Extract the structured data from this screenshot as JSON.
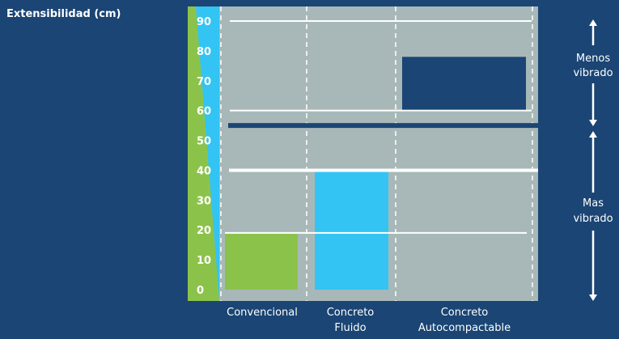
{
  "title": "Extensibilidad (cm)",
  "colors": {
    "background": "#1a4574",
    "plot_area": "#a8b8b8",
    "green": "#8bc34a",
    "cyan": "#33c4f3",
    "navy": "#1a4574",
    "white": "#ffffff"
  },
  "chart_data": {
    "type": "bar",
    "ylim": [
      0,
      90
    ],
    "yticks": [
      "0",
      "10",
      "20",
      "30",
      "40",
      "50",
      "60",
      "70",
      "80",
      "90"
    ],
    "categories": [
      {
        "lines": [
          "Convencional"
        ]
      },
      {
        "lines": [
          "Concreto",
          "Fluido"
        ]
      },
      {
        "lines": [
          "Concreto",
          "Autocompactable"
        ]
      }
    ],
    "bars": [
      {
        "category": 0,
        "low": 0,
        "high": 19,
        "color": "#8bc34a"
      },
      {
        "category": 1,
        "low": 0,
        "high": 40,
        "color": "#33c4f3"
      },
      {
        "category": 2,
        "low": 60,
        "high": 78,
        "color": "#1a4574"
      }
    ],
    "reference_lines": [
      {
        "value": 19,
        "color": "#ffffff",
        "style": "solid"
      },
      {
        "value": 40,
        "color": "#ffffff",
        "style": "solid"
      },
      {
        "value": 55,
        "color": "#1a4574",
        "style": "solid"
      },
      {
        "value": 60,
        "color": "#ffffff",
        "style": "solid"
      },
      {
        "value": 90,
        "color": "#ffffff",
        "style": "solid"
      }
    ],
    "grid": "dashed vertical separators",
    "annotations": [
      {
        "lines": [
          "Menos",
          "vibrado"
        ],
        "from": 90,
        "to": 55
      },
      {
        "lines": [
          "Mas",
          "vibrado"
        ],
        "from": 55,
        "to": 0
      }
    ]
  }
}
